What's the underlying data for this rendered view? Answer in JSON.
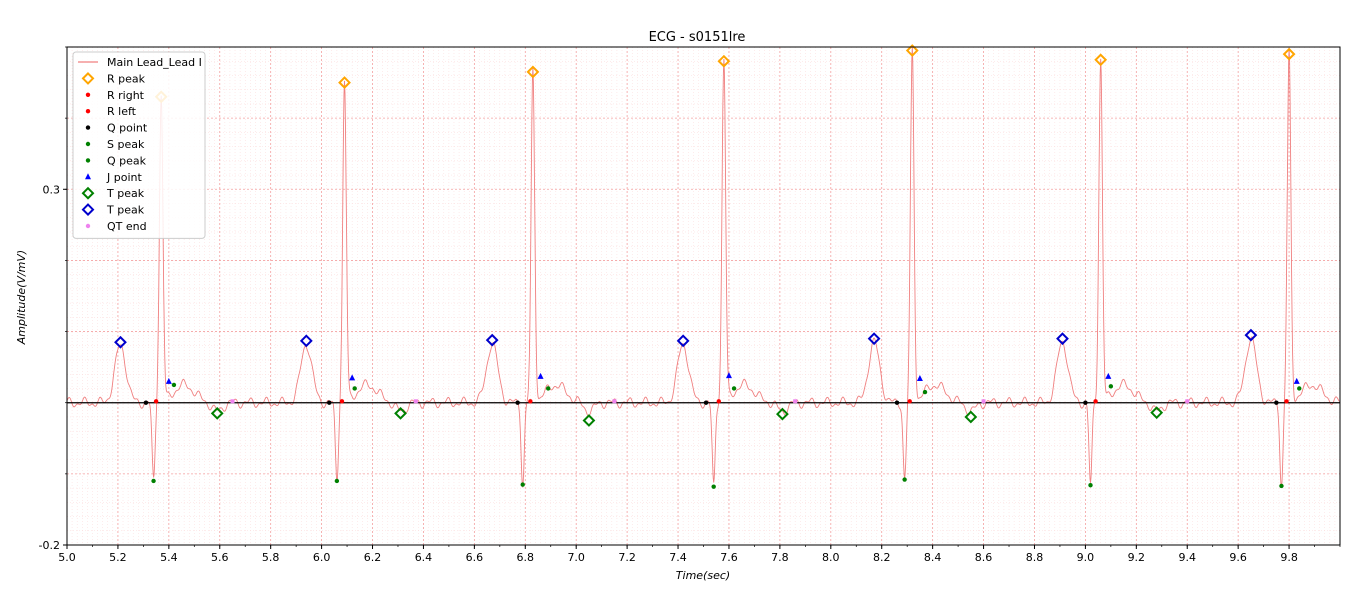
{
  "chart_data": {
    "type": "line",
    "title": "ECG - s0151lre",
    "xlabel": "Time(sec)",
    "ylabel": "Amplitude(V/mV)",
    "xlim": [
      5.0,
      10.0
    ],
    "ylim": [
      -0.2,
      0.5
    ],
    "x_ticks": [
      "5.0",
      "5.2",
      "5.4",
      "5.6",
      "5.8",
      "6.0",
      "6.2",
      "6.4",
      "6.6",
      "6.8",
      "7.0",
      "7.2",
      "7.4",
      "7.6",
      "7.8",
      "8.0",
      "8.2",
      "8.4",
      "8.6",
      "8.8",
      "9.0",
      "9.2",
      "9.4",
      "9.6",
      "9.8"
    ],
    "y_ticks": [
      "0.3",
      "-0.2"
    ],
    "baseline": 0.0,
    "grid": true,
    "legend_position": "top-left",
    "legend": [
      {
        "label": "Main Lead_Lead I",
        "marker": "line",
        "color": "#f08080"
      },
      {
        "label": "R peak",
        "marker": "diamond",
        "color": "#ffa500"
      },
      {
        "label": "R right",
        "marker": "dot",
        "color": "#ff0000"
      },
      {
        "label": "R left",
        "marker": "dot",
        "color": "#ff0000"
      },
      {
        "label": "Q point",
        "marker": "dot",
        "color": "#000000"
      },
      {
        "label": "S peak",
        "marker": "dot",
        "color": "#008000"
      },
      {
        "label": "Q peak",
        "marker": "dot",
        "color": "#008000"
      },
      {
        "label": "J point",
        "marker": "triangle",
        "color": "#0000ff"
      },
      {
        "label": "T peak",
        "marker": "diamond",
        "color": "#008000"
      },
      {
        "label": "T peak",
        "marker": "diamond",
        "color": "#0000cc"
      },
      {
        "label": "QT end",
        "marker": "dot",
        "color": "#ee82ee"
      }
    ],
    "beats": [
      {
        "q_point_x": 5.31,
        "r_left_x": 5.35,
        "r_x": 5.37,
        "r_y": 0.43,
        "s_x": 5.34,
        "s_y": -0.11,
        "j_x": 5.4,
        "j_y": 0.03,
        "q_peak_x": 5.42,
        "q_peak_y": 0.025,
        "t_green_x": 5.59,
        "t_green_y": -0.015,
        "qt_end_x": 5.65,
        "p_x": 5.21,
        "p_y": 0.085,
        "p_pre_x": 5.21,
        "p_pre_y": 0.085
      },
      {
        "q_point_x": 6.03,
        "r_left_x": 6.08,
        "r_x": 6.09,
        "r_y": 0.45,
        "s_x": 6.06,
        "s_y": -0.11,
        "j_x": 6.12,
        "j_y": 0.035,
        "q_peak_x": 6.13,
        "q_peak_y": 0.02,
        "t_green_x": 6.31,
        "t_green_y": -0.015,
        "qt_end_x": 6.37,
        "p_x": 5.94,
        "p_y": 0.087
      },
      {
        "q_point_x": 6.77,
        "r_left_x": 6.82,
        "r_x": 6.83,
        "r_y": 0.465,
        "s_x": 6.79,
        "s_y": -0.115,
        "j_x": 6.86,
        "j_y": 0.037,
        "q_peak_x": 6.89,
        "q_peak_y": 0.02,
        "t_green_x": 7.05,
        "t_green_y": -0.025,
        "qt_end_x": 7.15,
        "p_x": 6.67,
        "p_y": 0.088
      },
      {
        "q_point_x": 7.51,
        "r_left_x": 7.56,
        "r_x": 7.58,
        "r_y": 0.48,
        "s_x": 7.54,
        "s_y": -0.118,
        "j_x": 7.6,
        "j_y": 0.038,
        "q_peak_x": 7.62,
        "q_peak_y": 0.02,
        "t_green_x": 7.81,
        "t_green_y": -0.016,
        "qt_end_x": 7.86,
        "p_x": 7.42,
        "p_y": 0.087
      },
      {
        "q_point_x": 8.26,
        "r_left_x": 8.31,
        "r_x": 8.32,
        "r_y": 0.495,
        "s_x": 8.29,
        "s_y": -0.108,
        "j_x": 8.35,
        "j_y": 0.034,
        "q_peak_x": 8.37,
        "q_peak_y": 0.015,
        "t_green_x": 8.55,
        "t_green_y": -0.02,
        "qt_end_x": 8.6,
        "p_x": 8.17,
        "p_y": 0.09
      },
      {
        "q_point_x": 9.0,
        "r_left_x": 9.04,
        "r_x": 9.06,
        "r_y": 0.482,
        "s_x": 9.02,
        "s_y": -0.116,
        "j_x": 9.09,
        "j_y": 0.037,
        "q_peak_x": 9.1,
        "q_peak_y": 0.023,
        "t_green_x": 9.28,
        "t_green_y": -0.014,
        "qt_end_x": 9.4,
        "p_x": 8.91,
        "p_y": 0.09
      },
      {
        "q_point_x": 9.75,
        "r_left_x": 9.79,
        "r_x": 9.8,
        "r_y": 0.49,
        "s_x": 9.77,
        "s_y": -0.117,
        "j_x": 9.83,
        "j_y": 0.03,
        "q_peak_x": 9.84,
        "q_peak_y": 0.02,
        "t_green_x": 9.4,
        "t_green_y": 0.0,
        "qt_end_x": 9.4,
        "p_x": 9.65,
        "p_y": 0.095
      }
    ]
  },
  "colors": {
    "signal": "#f08080",
    "r_peak": "#ffa500",
    "r_side": "#ff0000",
    "q_point": "#000000",
    "green": "#008000",
    "j_point": "#0000ff",
    "t_blue": "#0000cc",
    "qt_end": "#ee82ee",
    "grid_major": "#f4a0a0",
    "grid_minor": "#fbd8d8",
    "baseline": "#000000"
  }
}
